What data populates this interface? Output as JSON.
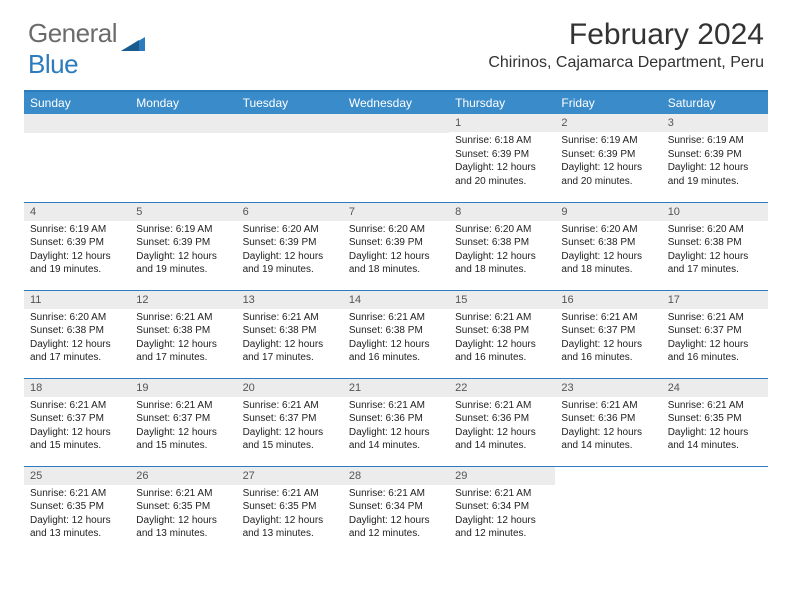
{
  "brand": {
    "word1": "General",
    "word2": "Blue"
  },
  "title": "February 2024",
  "location": "Chirinos, Cajamarca Department, Peru",
  "colors": {
    "header_bar": "#3a8bc9",
    "divider": "#2b7bbd",
    "daynum_bg": "#ececec",
    "text": "#222222",
    "logo_gray": "#6b6b6b",
    "logo_blue": "#2b7bbd"
  },
  "weekdays": [
    "Sunday",
    "Monday",
    "Tuesday",
    "Wednesday",
    "Thursday",
    "Friday",
    "Saturday"
  ],
  "weeks": [
    [
      null,
      null,
      null,
      null,
      {
        "n": "1",
        "sr": "Sunrise: 6:18 AM",
        "ss": "Sunset: 6:39 PM",
        "dl": "Daylight: 12 hours and 20 minutes."
      },
      {
        "n": "2",
        "sr": "Sunrise: 6:19 AM",
        "ss": "Sunset: 6:39 PM",
        "dl": "Daylight: 12 hours and 20 minutes."
      },
      {
        "n": "3",
        "sr": "Sunrise: 6:19 AM",
        "ss": "Sunset: 6:39 PM",
        "dl": "Daylight: 12 hours and 19 minutes."
      }
    ],
    [
      {
        "n": "4",
        "sr": "Sunrise: 6:19 AM",
        "ss": "Sunset: 6:39 PM",
        "dl": "Daylight: 12 hours and 19 minutes."
      },
      {
        "n": "5",
        "sr": "Sunrise: 6:19 AM",
        "ss": "Sunset: 6:39 PM",
        "dl": "Daylight: 12 hours and 19 minutes."
      },
      {
        "n": "6",
        "sr": "Sunrise: 6:20 AM",
        "ss": "Sunset: 6:39 PM",
        "dl": "Daylight: 12 hours and 19 minutes."
      },
      {
        "n": "7",
        "sr": "Sunrise: 6:20 AM",
        "ss": "Sunset: 6:39 PM",
        "dl": "Daylight: 12 hours and 18 minutes."
      },
      {
        "n": "8",
        "sr": "Sunrise: 6:20 AM",
        "ss": "Sunset: 6:38 PM",
        "dl": "Daylight: 12 hours and 18 minutes."
      },
      {
        "n": "9",
        "sr": "Sunrise: 6:20 AM",
        "ss": "Sunset: 6:38 PM",
        "dl": "Daylight: 12 hours and 18 minutes."
      },
      {
        "n": "10",
        "sr": "Sunrise: 6:20 AM",
        "ss": "Sunset: 6:38 PM",
        "dl": "Daylight: 12 hours and 17 minutes."
      }
    ],
    [
      {
        "n": "11",
        "sr": "Sunrise: 6:20 AM",
        "ss": "Sunset: 6:38 PM",
        "dl": "Daylight: 12 hours and 17 minutes."
      },
      {
        "n": "12",
        "sr": "Sunrise: 6:21 AM",
        "ss": "Sunset: 6:38 PM",
        "dl": "Daylight: 12 hours and 17 minutes."
      },
      {
        "n": "13",
        "sr": "Sunrise: 6:21 AM",
        "ss": "Sunset: 6:38 PM",
        "dl": "Daylight: 12 hours and 17 minutes."
      },
      {
        "n": "14",
        "sr": "Sunrise: 6:21 AM",
        "ss": "Sunset: 6:38 PM",
        "dl": "Daylight: 12 hours and 16 minutes."
      },
      {
        "n": "15",
        "sr": "Sunrise: 6:21 AM",
        "ss": "Sunset: 6:38 PM",
        "dl": "Daylight: 12 hours and 16 minutes."
      },
      {
        "n": "16",
        "sr": "Sunrise: 6:21 AM",
        "ss": "Sunset: 6:37 PM",
        "dl": "Daylight: 12 hours and 16 minutes."
      },
      {
        "n": "17",
        "sr": "Sunrise: 6:21 AM",
        "ss": "Sunset: 6:37 PM",
        "dl": "Daylight: 12 hours and 16 minutes."
      }
    ],
    [
      {
        "n": "18",
        "sr": "Sunrise: 6:21 AM",
        "ss": "Sunset: 6:37 PM",
        "dl": "Daylight: 12 hours and 15 minutes."
      },
      {
        "n": "19",
        "sr": "Sunrise: 6:21 AM",
        "ss": "Sunset: 6:37 PM",
        "dl": "Daylight: 12 hours and 15 minutes."
      },
      {
        "n": "20",
        "sr": "Sunrise: 6:21 AM",
        "ss": "Sunset: 6:37 PM",
        "dl": "Daylight: 12 hours and 15 minutes."
      },
      {
        "n": "21",
        "sr": "Sunrise: 6:21 AM",
        "ss": "Sunset: 6:36 PM",
        "dl": "Daylight: 12 hours and 14 minutes."
      },
      {
        "n": "22",
        "sr": "Sunrise: 6:21 AM",
        "ss": "Sunset: 6:36 PM",
        "dl": "Daylight: 12 hours and 14 minutes."
      },
      {
        "n": "23",
        "sr": "Sunrise: 6:21 AM",
        "ss": "Sunset: 6:36 PM",
        "dl": "Daylight: 12 hours and 14 minutes."
      },
      {
        "n": "24",
        "sr": "Sunrise: 6:21 AM",
        "ss": "Sunset: 6:35 PM",
        "dl": "Daylight: 12 hours and 14 minutes."
      }
    ],
    [
      {
        "n": "25",
        "sr": "Sunrise: 6:21 AM",
        "ss": "Sunset: 6:35 PM",
        "dl": "Daylight: 12 hours and 13 minutes."
      },
      {
        "n": "26",
        "sr": "Sunrise: 6:21 AM",
        "ss": "Sunset: 6:35 PM",
        "dl": "Daylight: 12 hours and 13 minutes."
      },
      {
        "n": "27",
        "sr": "Sunrise: 6:21 AM",
        "ss": "Sunset: 6:35 PM",
        "dl": "Daylight: 12 hours and 13 minutes."
      },
      {
        "n": "28",
        "sr": "Sunrise: 6:21 AM",
        "ss": "Sunset: 6:34 PM",
        "dl": "Daylight: 12 hours and 12 minutes."
      },
      {
        "n": "29",
        "sr": "Sunrise: 6:21 AM",
        "ss": "Sunset: 6:34 PM",
        "dl": "Daylight: 12 hours and 12 minutes."
      },
      null,
      null
    ]
  ]
}
